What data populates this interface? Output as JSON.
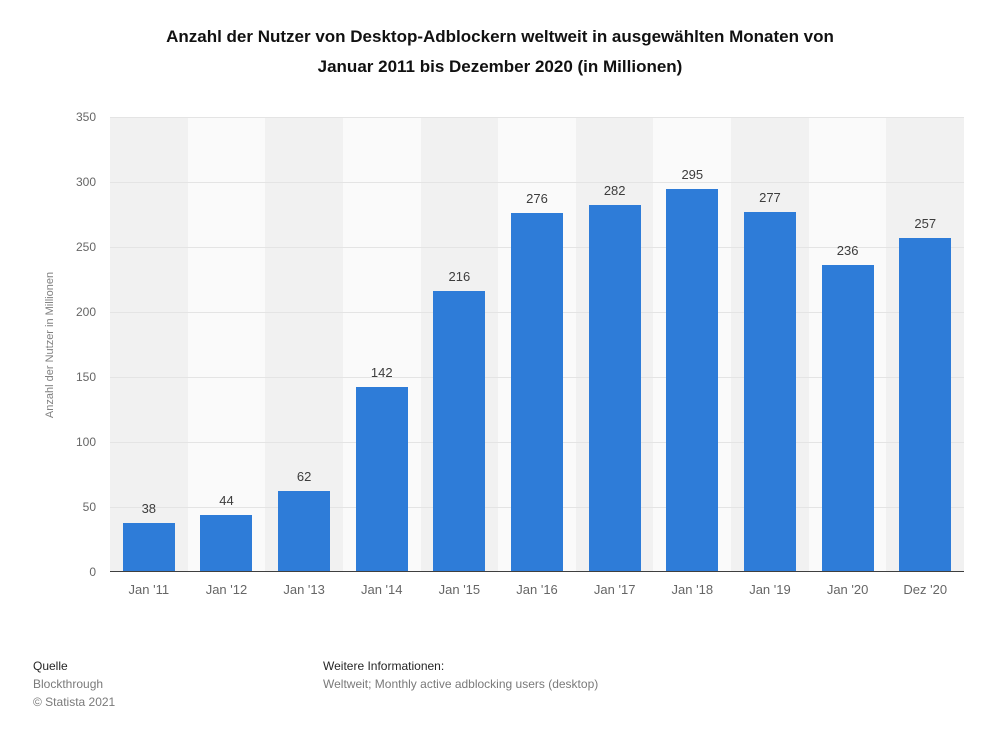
{
  "title_lines": [
    "Anzahl der Nutzer von Desktop-Adblockern weltweit in ausgewählten Monaten von",
    "Januar 2011 bis Dezember 2020 (in Millionen)"
  ],
  "chart_data": {
    "type": "bar",
    "title": "Anzahl der Nutzer von Desktop-Adblockern weltweit in ausgewählten Monaten von Januar 2011 bis Dezember 2020 (in Millionen)",
    "categories": [
      "Jan '11",
      "Jan '12",
      "Jan '13",
      "Jan '14",
      "Jan '15",
      "Jan '16",
      "Jan '17",
      "Jan '18",
      "Jan '19",
      "Jan '20",
      "Dez '20"
    ],
    "values": [
      38,
      44,
      62,
      142,
      216,
      276,
      282,
      295,
      277,
      236,
      257
    ],
    "xlabel": "",
    "ylabel": "Anzahl der Nutzer in Millionen",
    "ylim": [
      0,
      350
    ],
    "yticks": [
      0,
      50,
      100,
      150,
      200,
      250,
      300,
      350
    ],
    "grid": true,
    "legend": "none",
    "bar_color": "#2e7cd8"
  },
  "footer": {
    "source_label": "Quelle",
    "source_name": "Blockthrough",
    "copyright": "© Statista 2021",
    "info_label": "Weitere Informationen:",
    "info_text": "Weltweit; Monthly active adblocking users (desktop)"
  }
}
